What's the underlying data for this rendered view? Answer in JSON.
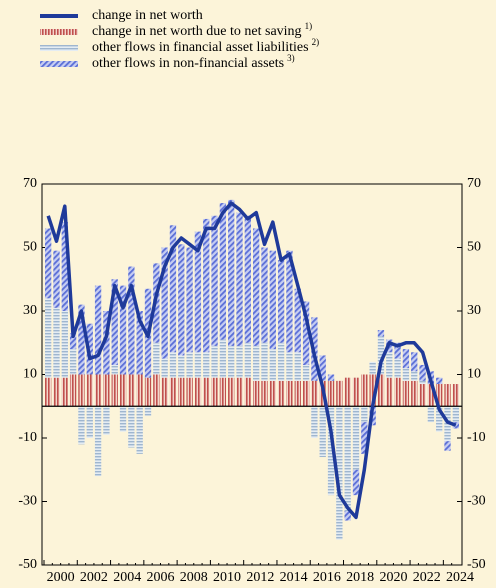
{
  "chart_data": {
    "type": "bar",
    "categories": [
      "2000",
      null,
      null,
      null,
      "2002",
      null,
      null,
      null,
      "2004",
      null,
      null,
      null,
      "2006",
      null,
      null,
      null,
      "2008",
      null,
      null,
      null,
      "2010",
      null,
      null,
      null,
      "2012",
      null,
      null,
      null,
      "2014",
      null,
      null,
      null,
      "2016",
      null,
      null,
      null,
      "2018",
      null,
      null,
      null,
      "2020",
      null,
      null,
      null,
      "2022",
      null,
      null,
      null,
      "2024",
      null
    ],
    "series": [
      {
        "name": "change in net worth",
        "kind": "line",
        "color": "#1f3a9a",
        "values": [
          60,
          52,
          63,
          22,
          30,
          15,
          16,
          22,
          38,
          31,
          38,
          27,
          22,
          35,
          44,
          50,
          53,
          51,
          49,
          56,
          56,
          61,
          64,
          62,
          59,
          61,
          51,
          58,
          46,
          48,
          38,
          28,
          16,
          6,
          -8,
          -28,
          -32,
          -35,
          -20,
          0,
          14,
          20,
          19,
          20,
          20,
          17,
          8,
          -1,
          -5,
          -6
        ]
      },
      {
        "name": "change in net worth due to net saving",
        "sup": "1)",
        "kind": "bar",
        "pattern": "vertical",
        "color": "#c0504d",
        "values": [
          9,
          9,
          9,
          10,
          10,
          10,
          10,
          10,
          10,
          10,
          10,
          10,
          9,
          10,
          9,
          9,
          9,
          9,
          9,
          9,
          9,
          9,
          9,
          9,
          9,
          8,
          8,
          8,
          8,
          8,
          8,
          8,
          8,
          8,
          8,
          8,
          9,
          9,
          10,
          10,
          10,
          9,
          9,
          8,
          8,
          7,
          7,
          7,
          7,
          7
        ]
      },
      {
        "name": "other flows in financial asset liabilities",
        "sup": "2)",
        "kind": "bar",
        "pattern": "horizontal",
        "color": "#9fb6cf",
        "values": [
          25,
          22,
          21,
          8,
          -12,
          -10,
          -22,
          -9,
          3,
          -8,
          -13,
          -15,
          -3,
          10,
          6,
          8,
          7,
          8,
          8,
          8,
          10,
          12,
          10,
          10,
          11,
          11,
          12,
          10,
          12,
          9,
          9,
          5,
          -10,
          -16,
          -28,
          -42,
          -33,
          -20,
          -5,
          4,
          12,
          8,
          6,
          4,
          3,
          1,
          -5,
          -8,
          -11,
          -5
        ]
      },
      {
        "name": "other flows in non-financial  assets",
        "sup": "3)",
        "kind": "bar",
        "pattern": "diagonal",
        "color": "#5b6fd6",
        "values": [
          22,
          18,
          28,
          5,
          22,
          16,
          28,
          20,
          27,
          28,
          34,
          20,
          28,
          25,
          35,
          40,
          35,
          33,
          38,
          42,
          41,
          43,
          46,
          42,
          40,
          37,
          30,
          31,
          26,
          32,
          20,
          20,
          20,
          8,
          2,
          0,
          -3,
          -8,
          -10,
          -6,
          2,
          4,
          5,
          6,
          6,
          5,
          4,
          2,
          -3,
          -2
        ]
      }
    ],
    "ylim": [
      -50,
      70
    ],
    "yticks": [
      -50,
      -30,
      -10,
      10,
      30,
      50,
      70
    ]
  }
}
